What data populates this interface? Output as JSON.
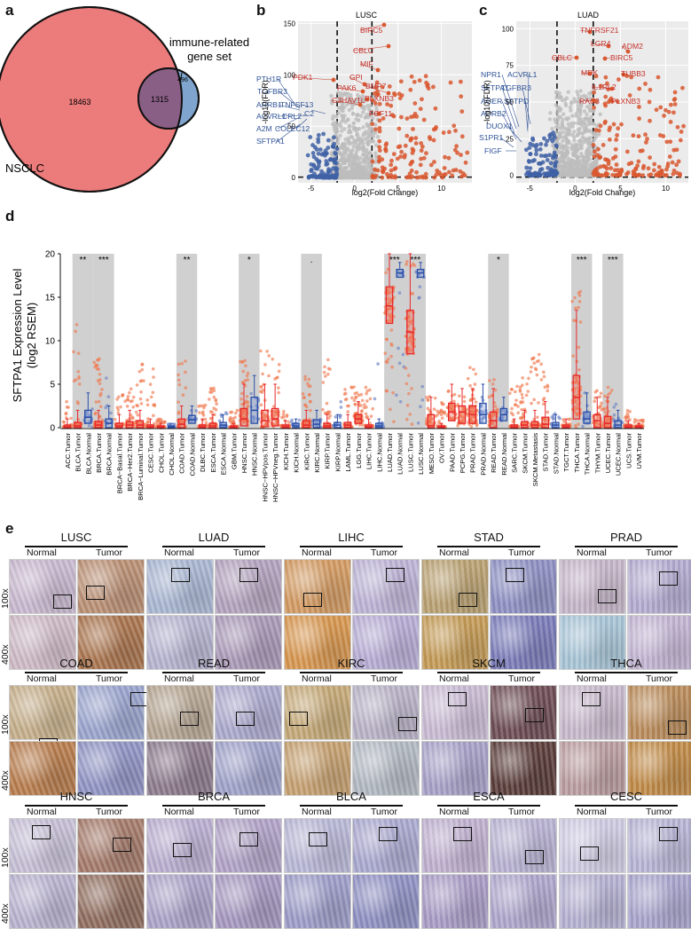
{
  "panels": {
    "a": "a",
    "b": "b",
    "c": "c",
    "d": "d",
    "e": "e"
  },
  "venn": {
    "left_label": "NSCLC",
    "right_label_line1": "immune-related",
    "right_label_line2": "gene set",
    "left_only": "18463",
    "overlap": "1315",
    "right_only": "496",
    "left_color": "#ec7b7b",
    "right_color": "#7fa5cf",
    "overlap_color": "#8a5f86"
  },
  "volcano_lusc": {
    "title": "LUSC",
    "xlabel": "log2(Fold Change)",
    "ylabel": "-log10(FDR)",
    "xticks": [
      "-5",
      "0",
      "5",
      "10"
    ],
    "yticks": [
      "0",
      "50",
      "100",
      "150"
    ],
    "up_labels": [
      "BIRC5",
      "CBLC",
      "MIF",
      "PDK1",
      "GPI",
      "BMP7",
      "PAK6",
      "PLXNB3",
      "C3HAV1L",
      "FGF11"
    ],
    "down_labels": [
      "PTH1R",
      "TGFBR3",
      "ARRB1",
      "TNFSF13",
      "C2",
      "ACVRL1",
      "CRL2",
      "A2M",
      "COLEC12",
      "SFTPA1"
    ]
  },
  "volcano_luad": {
    "title": "LUAD",
    "xlabel": "log2(Fold Change)",
    "ylabel": "-log10(FDR)",
    "xticks": [
      "-5",
      "0",
      "5",
      "10"
    ],
    "yticks": [
      "0",
      "25",
      "50",
      "75",
      "100"
    ],
    "up_labels": [
      "TNFRSF21",
      "LGR4",
      "ADM2",
      "CBLC",
      "BIRC5",
      "MDK",
      "TUBB3",
      "IL1RL2",
      "RAC3",
      "PLXNB3"
    ],
    "down_labels": [
      "NPR1",
      "ACVRL1",
      "SFTPA1",
      "TGFBR3",
      "AGER",
      "SFTPD",
      "ADRB2",
      "DUOX1",
      "S1PR1",
      "FIGF"
    ]
  },
  "chart_data": {
    "type": "box",
    "ylabel_line1": "SFTPA1  Expression Level",
    "ylabel_line2": "(log2 RSEM)",
    "ylim": [
      0,
      20
    ],
    "yticks": [
      "0",
      "5",
      "10",
      "15",
      "20"
    ],
    "tumor_color": "#e8282c",
    "normal_color": "#2a4fa8",
    "categories": [
      "ACC.Tumor",
      "BLCA.Tumor",
      "BLCA.Normal",
      "BRCA.Tumor",
      "BRCA.Normal",
      "BRCA−Basal.Tumor",
      "BRCA−Her2.Tumor",
      "BRCA−Luminal.Tumor",
      "CESC.Tumor",
      "CHOL.Tumor",
      "CHOL.Normal",
      "COAD.Tumor",
      "COAD.Normal",
      "DLBC.Tumor",
      "ESCA.Tumor",
      "ESCA.Normal",
      "GBM.Tumor",
      "HNSC.Tumor",
      "HNSC.Normal",
      "HNSC−HPVpos.Tumor",
      "HNSC−HPVneg.Tumor",
      "KICH.Tumor",
      "KICH.Normal",
      "KIRC.Tumor",
      "KIRC.Normal",
      "KIRP.Tumor",
      "KIRP.Normal",
      "LAML.Tumor",
      "LGG.Tumor",
      "LIHC.Tumor",
      "LIHC.Normal",
      "LUAD.Tumor",
      "LUAD.Normal",
      "LUSC.Tumor",
      "LUSC.Normal",
      "MESO.Tumor",
      "OV.Tumor",
      "PAAD.Tumor",
      "PCPG.Tumor",
      "PRAD.Tumor",
      "PRAD.Normal",
      "READ.Tumor",
      "READ.Normal",
      "SARC.Tumor",
      "SKCM.Tumor",
      "SKCM.Metastasis",
      "STAD.Tumor",
      "STAD.Normal",
      "TGCT.Tumor",
      "THCA.Tumor",
      "THCA.Normal",
      "THYM.Tumor",
      "UCEC.Tumor",
      "UCEC.Normal",
      "UCS.Tumor",
      "UVM.Tumor"
    ],
    "medians": [
      0.1,
      0.2,
      1.2,
      0.3,
      0.5,
      0.2,
      0.3,
      0.3,
      0.1,
      0.1,
      0.1,
      0.4,
      0.9,
      0.1,
      0.2,
      0.3,
      0.1,
      1.0,
      2.0,
      0.8,
      1.0,
      0.1,
      0.2,
      0.3,
      0.4,
      0.2,
      0.3,
      0.3,
      1.0,
      0.1,
      0.2,
      14.0,
      17.8,
      11.0,
      17.8,
      0.2,
      0.1,
      1.8,
      1.8,
      1.5,
      1.5,
      0.8,
      1.5,
      0.1,
      0.3,
      0.3,
      0.4,
      0.3,
      0.1,
      3.5,
      1.0,
      0.8,
      0.5,
      0.3,
      0.1,
      0.1
    ],
    "q3": [
      0.3,
      0.6,
      2.0,
      0.7,
      1.0,
      0.5,
      0.7,
      0.8,
      0.3,
      0.2,
      0.2,
      1.0,
      1.4,
      0.3,
      0.5,
      0.6,
      0.2,
      2.2,
      3.5,
      2.0,
      2.2,
      0.3,
      0.5,
      0.8,
      0.9,
      0.5,
      0.6,
      0.6,
      1.5,
      0.3,
      0.5,
      16.2,
      18.2,
      13.5,
      18.2,
      1.5,
      0.2,
      2.8,
      2.5,
      2.5,
      2.8,
      1.8,
      2.2,
      0.3,
      0.7,
      0.7,
      1.2,
      0.6,
      0.3,
      6.0,
      1.8,
      1.5,
      1.3,
      0.8,
      0.3,
      0.2
    ],
    "q1": [
      0,
      0,
      0.5,
      0,
      0,
      0,
      0,
      0,
      0,
      0,
      0,
      0,
      0.5,
      0,
      0,
      0,
      0,
      0.2,
      0.5,
      0.1,
      0.2,
      0,
      0,
      0,
      0,
      0,
      0,
      0,
      0.5,
      0,
      0,
      12.0,
      17.3,
      8.5,
      17.3,
      0,
      0,
      0.8,
      0.5,
      0.5,
      0.5,
      0,
      0.8,
      0,
      0,
      0,
      0,
      0,
      0,
      1.0,
      0.5,
      0,
      0,
      0,
      0,
      0
    ],
    "whisker_hi": [
      1.0,
      2.0,
      4.0,
      2.0,
      2.5,
      1.5,
      2.0,
      2.0,
      1.0,
      0.5,
      0.5,
      2.5,
      2.5,
      1.0,
      1.5,
      1.5,
      0.5,
      5.0,
      6.0,
      5.0,
      5.0,
      0.8,
      1.0,
      2.0,
      2.0,
      1.5,
      1.5,
      1.5,
      3.0,
      1.0,
      1.0,
      20.0,
      19.0,
      20.0,
      19.0,
      3.5,
      0.5,
      5.0,
      4.5,
      4.5,
      5.0,
      4.5,
      3.5,
      1.0,
      2.0,
      2.0,
      3.0,
      1.5,
      1.0,
      13.5,
      4.0,
      3.5,
      3.5,
      2.0,
      0.8,
      0.5
    ],
    "outlier_max": [
      3,
      12,
      3,
      8,
      7,
      4,
      5,
      8,
      7,
      1,
      0.5,
      8,
      2,
      3,
      5,
      2,
      2,
      8,
      5,
      9,
      8,
      2,
      1,
      6,
      1,
      8,
      3,
      5,
      5,
      5,
      12,
      20,
      20,
      20,
      20,
      4,
      3,
      5,
      4,
      7,
      5,
      6,
      3,
      5,
      6,
      9,
      8,
      2,
      1,
      16,
      4,
      5,
      5,
      3,
      2,
      1
    ],
    "significance": [
      {
        "after": "BLCA.Normal",
        "label": "**"
      },
      {
        "after": "BRCA.Normal",
        "label": "***"
      },
      {
        "after": "COAD.Normal",
        "label": "**"
      },
      {
        "after": "HNSC.Normal",
        "label": "*"
      },
      {
        "after": "KIRC.Normal",
        "label": "."
      },
      {
        "after": "LUAD.Normal",
        "label": "***"
      },
      {
        "after": "LUSC.Normal",
        "label": "***"
      },
      {
        "after": "READ.Normal",
        "label": "*"
      },
      {
        "after": "THCA.Normal",
        "label": "***"
      },
      {
        "after": "UCEC.Normal",
        "label": "***"
      }
    ]
  },
  "ihc": {
    "normal_label": "Normal",
    "tumor_label": "Tumor",
    "mag_low": "100x",
    "mag_high": "400x",
    "tissues": [
      {
        "name": "LUSC",
        "nc": "#c8b8cf",
        "tc": "#b98f74",
        "nh": "#cdb9c5",
        "th": "#a9744e"
      },
      {
        "name": "LUAD",
        "nc": "#a9b6d2",
        "tc": "#b2a2bd",
        "nh": "#b5b3cf",
        "th": "#a898b6"
      },
      {
        "name": "LIHC",
        "nc": "#d29a62",
        "tc": "#bcb3d5",
        "nh": "#d7964f",
        "th": "#b6acd4"
      },
      {
        "name": "STAD",
        "nc": "#b8a071",
        "tc": "#8d8fc2",
        "nh": "#c39a55",
        "th": "#7a7bb8"
      },
      {
        "name": "PRAD",
        "nc": "#c5b5c8",
        "tc": "#b3abd0",
        "nh": "#a7c4d6",
        "th": "#c2b4d2"
      },
      {
        "name": "COAD",
        "nc": "#c5ae8a",
        "tc": "#9aa4cd",
        "nh": "#b77c4d",
        "th": "#8f93c3"
      },
      {
        "name": "READ",
        "nc": "#b5a592",
        "tc": "#aaa8cc",
        "nh": "#8c7a8c",
        "th": "#9fa1c9"
      },
      {
        "name": "KIRC",
        "nc": "#c4a877",
        "tc": "#b8b2c6",
        "nh": "#c5a071",
        "th": "#b2b8c2"
      },
      {
        "name": "SKCM",
        "nc": "#c8bad3",
        "tc": "#6d4d54",
        "nh": "#a7a0c7",
        "th": "#5a3d3a"
      },
      {
        "name": "THCA",
        "nc": "#c6b8cb",
        "tc": "#b98b5a",
        "nh": "#b99c9f",
        "th": "#c08a47"
      },
      {
        "name": "HNSC",
        "nc": "#c6bfd6",
        "tc": "#a47a6a",
        "nh": "#b8b2cf",
        "th": "#8f6d5e"
      },
      {
        "name": "BRCA",
        "nc": "#b9aed0",
        "tc": "#b0a2c6",
        "nh": "#aba3c8",
        "th": "#a597bf"
      },
      {
        "name": "BLCA",
        "nc": "#b8b7d6",
        "tc": "#a9a8cf",
        "nh": "#9c9cc8",
        "th": "#8f90c2"
      },
      {
        "name": "ESCA",
        "nc": "#bfb0cf",
        "tc": "#b8b2d2",
        "nh": "#a89bc5",
        "th": "#aea6cc"
      },
      {
        "name": "CESC",
        "nc": "#cfcbe2",
        "tc": "#b7b4d4",
        "nh": "#b4b0d1",
        "th": "#a8a4cc"
      }
    ]
  }
}
